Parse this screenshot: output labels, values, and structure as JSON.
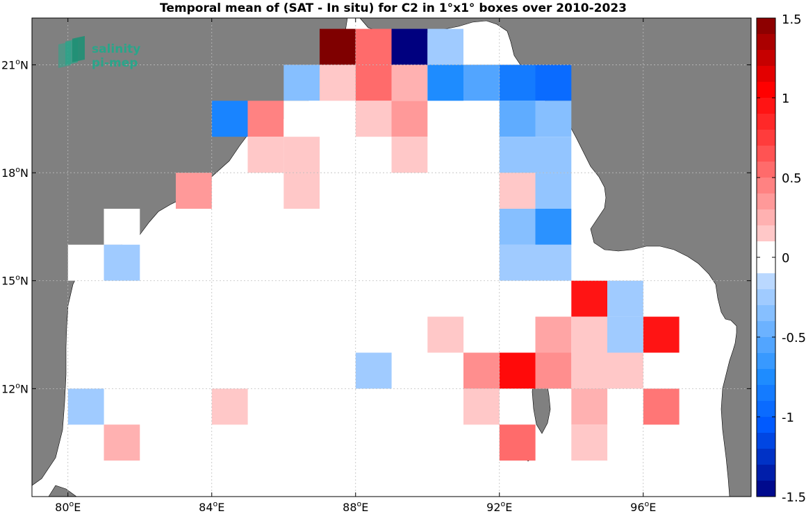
{
  "chart_data": {
    "type": "heatmap",
    "title": "Temporal mean of (SAT - In situ) for C2 in 1°x1° boxes over 2010-2023",
    "x_unit_label": "E",
    "y_unit_label": "N",
    "xlim": [
      79,
      99
    ],
    "ylim": [
      9,
      22.3
    ],
    "xticks": [
      80,
      84,
      88,
      92,
      96
    ],
    "yticks": [
      12,
      15,
      18,
      21
    ],
    "colorbar": {
      "range": [
        -1.5,
        1.5
      ],
      "ticks": [
        -1.5,
        -1,
        -0.5,
        0,
        0.5,
        1,
        1.5
      ],
      "tick_labels": [
        "-1.5",
        "-1",
        "-0.5",
        "0",
        "0.5",
        "1",
        "1.5"
      ],
      "steps": 30
    },
    "grid": true,
    "logo": {
      "line1": "salinity",
      "line2": "pi-mep"
    },
    "colors": {
      "land": "#808080",
      "ocean": "#ffffff",
      "neg_extreme": "#00007f",
      "pos_extreme": "#7f0000",
      "grid": "#bdbdbd",
      "logo": "#2aa58a"
    },
    "cells_note": "each cell = [lon_center, lat_center, value]",
    "cells": [
      [
        87.5,
        21.5,
        1.5
      ],
      [
        88.5,
        21.5,
        0.55
      ],
      [
        89.5,
        21.5,
        -1.5
      ],
      [
        90.5,
        21.5,
        -0.25
      ],
      [
        91.5,
        21.5,
        -0.1
      ],
      [
        86.5,
        20.5,
        -0.35
      ],
      [
        87.5,
        20.5,
        0.15
      ],
      [
        88.5,
        20.5,
        0.55
      ],
      [
        89.5,
        20.5,
        0.25
      ],
      [
        90.5,
        20.5,
        -0.75
      ],
      [
        91.5,
        20.5,
        -0.55
      ],
      [
        92.5,
        20.5,
        -0.85
      ],
      [
        93.5,
        20.5,
        -0.95
      ],
      [
        84.5,
        19.5,
        -0.8
      ],
      [
        85.5,
        19.5,
        0.45
      ],
      [
        86.5,
        19.5,
        -0.1
      ],
      [
        88.5,
        19.5,
        0.15
      ],
      [
        89.5,
        19.5,
        0.35
      ],
      [
        91.5,
        19.5,
        -0.1
      ],
      [
        92.5,
        19.5,
        -0.5
      ],
      [
        93.5,
        19.5,
        -0.35
      ],
      [
        85.5,
        18.5,
        0.15
      ],
      [
        86.5,
        18.5,
        0.15
      ],
      [
        89.5,
        18.5,
        0.15
      ],
      [
        92.5,
        18.5,
        -0.3
      ],
      [
        93.5,
        18.5,
        -0.3
      ],
      [
        83.5,
        17.5,
        0.35
      ],
      [
        86.5,
        17.5,
        0.15
      ],
      [
        87.5,
        17.5,
        -0.1
      ],
      [
        88.5,
        17.5,
        -0.1
      ],
      [
        92.5,
        17.5,
        0.15
      ],
      [
        93.5,
        17.5,
        -0.3
      ],
      [
        81.5,
        16.5,
        -0.1
      ],
      [
        89.5,
        16.5,
        -0.1
      ],
      [
        92.5,
        16.5,
        -0.35
      ],
      [
        93.5,
        16.5,
        -0.7
      ],
      [
        80.5,
        15.5,
        -0.1
      ],
      [
        81.5,
        15.5,
        -0.25
      ],
      [
        87.5,
        15.5,
        -0.1
      ],
      [
        92.5,
        15.5,
        -0.25
      ],
      [
        93.5,
        15.5,
        -0.25
      ],
      [
        88.5,
        14.5,
        -0.1
      ],
      [
        94.5,
        14.5,
        0.95
      ],
      [
        95.5,
        14.5,
        -0.25
      ],
      [
        88.5,
        13.5,
        -0.1
      ],
      [
        90.5,
        13.5,
        0.15
      ],
      [
        93.5,
        13.5,
        0.3
      ],
      [
        94.5,
        13.5,
        0.15
      ],
      [
        95.5,
        13.5,
        -0.25
      ],
      [
        96.5,
        13.5,
        0.95
      ],
      [
        81.5,
        12.5,
        -0.1
      ],
      [
        88.5,
        12.5,
        -0.25
      ],
      [
        91.5,
        12.5,
        0.4
      ],
      [
        92.5,
        12.5,
        1.0
      ],
      [
        93.5,
        12.5,
        0.4
      ],
      [
        94.5,
        12.5,
        0.15
      ],
      [
        95.5,
        12.5,
        0.15
      ],
      [
        80.5,
        11.5,
        -0.25
      ],
      [
        84.5,
        11.5,
        0.15
      ],
      [
        91.5,
        11.5,
        0.15
      ],
      [
        94.5,
        11.5,
        0.25
      ],
      [
        96.5,
        11.5,
        0.5
      ],
      [
        81.5,
        10.5,
        0.25
      ],
      [
        92.5,
        10.5,
        0.55
      ],
      [
        94.5,
        10.5,
        0.15
      ]
    ]
  }
}
